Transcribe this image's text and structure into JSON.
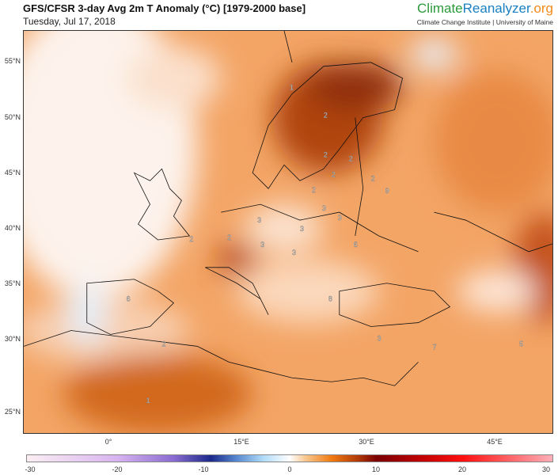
{
  "header": {
    "title": "GFS/CFSR 3-day Avg 2m T Anomaly (°C) [1979-2000 base]",
    "date": "Tuesday, Jul 17, 2018"
  },
  "brand": {
    "part1": "Climate",
    "part2": "Reanalyzer",
    ".org": ".org",
    "org": ".org",
    "subtitle": "Climate Change Institute | University of Maine"
  },
  "map": {
    "lat_labels": [
      "55°N",
      "50°N",
      "45°N",
      "40°N",
      "35°N",
      "30°N",
      "25°N"
    ],
    "lon_labels": [
      "0°",
      "15°E",
      "30°E",
      "45°E"
    ],
    "contour_labels": [
      "2",
      "2",
      "2",
      "2",
      "1",
      "2",
      "2",
      "3",
      "3",
      "9",
      "2",
      "2",
      "3",
      "3",
      "6",
      "3",
      "3",
      "8",
      "6",
      "2",
      "1",
      "3",
      "5",
      "7"
    ]
  },
  "colorbar": {
    "ticks": [
      "-30",
      "-20",
      "-10",
      "0",
      "10",
      "20",
      "30"
    ],
    "unit": "°C",
    "colors": {
      "cold_end": "#fbeef2",
      "blue": "#1a2a8a",
      "zero": "#ffffff",
      "orange": "#f07a10",
      "darkred": "#7a0000",
      "red": "#ff1010",
      "warm_end": "#ffb0b8"
    }
  }
}
